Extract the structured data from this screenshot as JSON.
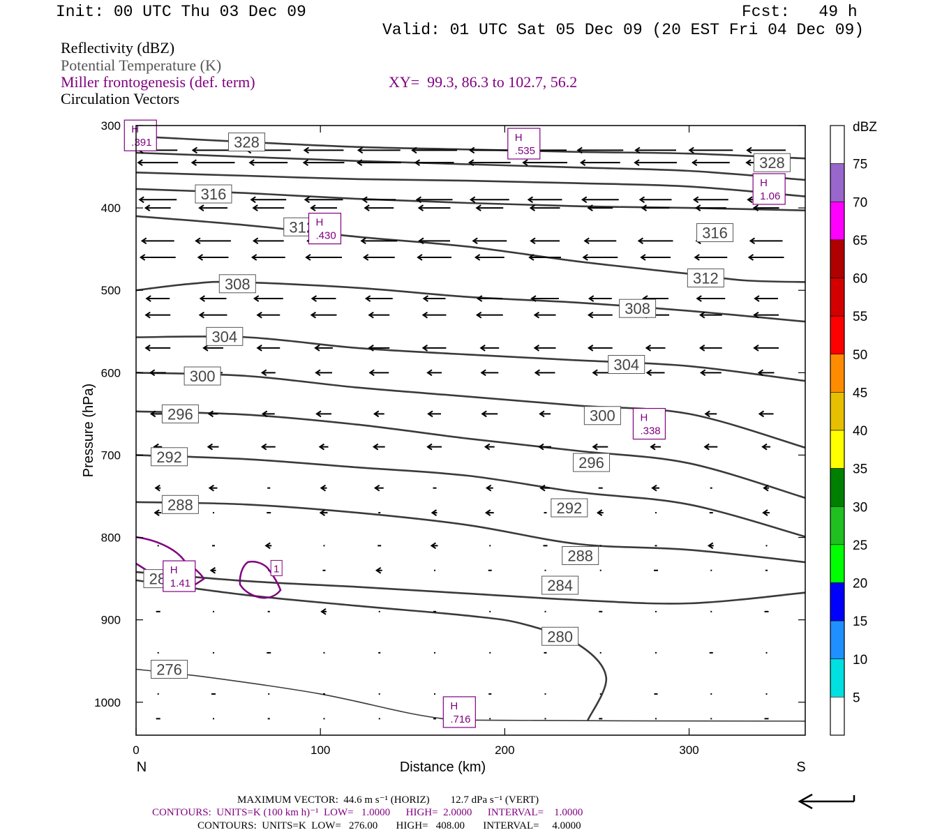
{
  "header": {
    "init": "Init: 00 UTC Thu 03 Dec 09",
    "fcst": "Fcst:   49 h",
    "valid": "Valid: 01 UTC Sat 05 Dec 09 (20 EST Fri 04 Dec 09)"
  },
  "fields": {
    "reflectivity": "Reflectivity (dBZ)",
    "theta": "Potential Temperature (K)",
    "miller": "Miller frontogenesis (def. term)",
    "xy": "XY=  99.3, 86.3 to 102.7, 56.2",
    "vectors": "Circulation Vectors"
  },
  "footer": {
    "max_vector": "MAXIMUM VECTOR:  44.6 m s⁻¹ (HORIZ)        12.7 dPa s⁻¹ (VERT)",
    "contours_fronto": "CONTOURS:  UNITS=K (100 km h)⁻¹  LOW=   1.0000      HIGH=  2.0000      INTERVAL=    1.0000",
    "contours_theta": "CONTOURS:  UNITS=K  LOW=   276.00       HIGH=   408.00       INTERVAL=     4.0000"
  },
  "colors": {
    "theta_line": "#3a3a3a",
    "fronto": "#800080",
    "colorbar": [
      "#ffffff",
      "#00e0e0",
      "#1e90ff",
      "#0000ff",
      "#00ff00",
      "#20c020",
      "#008000",
      "#ffff00",
      "#e6c000",
      "#ff8c00",
      "#ff0000",
      "#d40000",
      "#b00000",
      "#ff00ff",
      "#9966cc",
      "#ffffff"
    ]
  },
  "chart_data": {
    "type": "cross-section",
    "xlabel": "Distance (km)",
    "ylabel": "Pressure (hPa)",
    "xlim": [
      0,
      363
    ],
    "ylim": [
      1040,
      300
    ],
    "xticks": [
      0,
      100,
      200,
      300
    ],
    "yticks": [
      300,
      400,
      500,
      600,
      700,
      800,
      900,
      1000
    ],
    "x_end_labels": {
      "left": "N",
      "right": "S"
    },
    "colorbar": {
      "label": "dBZ",
      "ticks": [
        5,
        10,
        15,
        20,
        25,
        30,
        35,
        40,
        45,
        50,
        55,
        60,
        65,
        70,
        75
      ]
    },
    "theta_contours": [
      {
        "level": 328,
        "label": "328",
        "points": [
          [
            0,
            313
          ],
          [
            60,
            320
          ],
          [
            120,
            326
          ],
          [
            180,
            329
          ],
          [
            240,
            332
          ],
          [
            300,
            334
          ],
          [
            363,
            340
          ]
        ],
        "labels_at": [
          [
            60,
            320
          ],
          [
            345,
            345
          ]
        ]
      },
      {
        "level": 324,
        "label": "",
        "points": [
          [
            0,
            333
          ],
          [
            60,
            338
          ],
          [
            120,
            343
          ],
          [
            180,
            347
          ],
          [
            240,
            351
          ],
          [
            300,
            355
          ],
          [
            363,
            366
          ]
        ],
        "labels_at": []
      },
      {
        "level": 320,
        "label": "",
        "points": [
          [
            0,
            357
          ],
          [
            60,
            361
          ],
          [
            120,
            365
          ],
          [
            180,
            367
          ],
          [
            240,
            370
          ],
          [
            300,
            374
          ],
          [
            363,
            386
          ]
        ],
        "labels_at": []
      },
      {
        "level": 316,
        "label": "316",
        "points": [
          [
            0,
            377
          ],
          [
            60,
            382
          ],
          [
            120,
            389
          ],
          [
            180,
            394
          ],
          [
            240,
            398
          ],
          [
            300,
            400
          ],
          [
            363,
            403
          ]
        ],
        "labels_at": [
          [
            42,
            383
          ],
          [
            314,
            430
          ]
        ]
      },
      {
        "level": 312,
        "label": "312",
        "points": [
          [
            0,
            410
          ],
          [
            60,
            421
          ],
          [
            120,
            435
          ],
          [
            180,
            447
          ],
          [
            240,
            465
          ],
          [
            300,
            480
          ],
          [
            330,
            488
          ],
          [
            363,
            490
          ]
        ],
        "labels_at": [
          [
            90,
            423
          ],
          [
            309,
            485
          ]
        ]
      },
      {
        "level": 308,
        "label": "308",
        "points": [
          [
            0,
            500
          ],
          [
            30,
            492
          ],
          [
            55,
            490
          ],
          [
            120,
            497
          ],
          [
            180,
            508
          ],
          [
            240,
            515
          ],
          [
            300,
            525
          ],
          [
            363,
            538
          ]
        ],
        "labels_at": [
          [
            55,
            492
          ],
          [
            272,
            522
          ]
        ]
      },
      {
        "level": 304,
        "label": "304",
        "points": [
          [
            0,
            557
          ],
          [
            60,
            557
          ],
          [
            120,
            570
          ],
          [
            180,
            578
          ],
          [
            240,
            585
          ],
          [
            300,
            592
          ],
          [
            363,
            610
          ]
        ],
        "labels_at": [
          [
            48,
            556
          ],
          [
            266,
            590
          ]
        ]
      },
      {
        "level": 300,
        "label": "300",
        "points": [
          [
            0,
            600
          ],
          [
            60,
            604
          ],
          [
            120,
            618
          ],
          [
            180,
            629
          ],
          [
            240,
            640
          ],
          [
            300,
            650
          ],
          [
            363,
            691
          ]
        ],
        "labels_at": [
          [
            36,
            604
          ],
          [
            253,
            652
          ]
        ]
      },
      {
        "level": 296,
        "label": "296",
        "points": [
          [
            0,
            647
          ],
          [
            60,
            651
          ],
          [
            120,
            663
          ],
          [
            180,
            680
          ],
          [
            240,
            695
          ],
          [
            300,
            710
          ],
          [
            363,
            752
          ]
        ],
        "labels_at": [
          [
            24,
            650
          ],
          [
            247,
            709
          ]
        ]
      },
      {
        "level": 292,
        "label": "292",
        "points": [
          [
            0,
            700
          ],
          [
            60,
            705
          ],
          [
            120,
            715
          ],
          [
            180,
            725
          ],
          [
            240,
            745
          ],
          [
            300,
            760
          ],
          [
            363,
            799
          ]
        ],
        "labels_at": [
          [
            18,
            702
          ],
          [
            235,
            764
          ]
        ]
      },
      {
        "level": 288,
        "label": "288",
        "points": [
          [
            0,
            757
          ],
          [
            60,
            760
          ],
          [
            120,
            770
          ],
          [
            180,
            785
          ],
          [
            240,
            808
          ],
          [
            300,
            815
          ],
          [
            363,
            830
          ]
        ],
        "labels_at": [
          [
            24,
            760
          ],
          [
            241,
            822
          ]
        ]
      },
      {
        "level": 284,
        "label": "284",
        "points": [
          [
            0,
            842
          ],
          [
            60,
            853
          ],
          [
            120,
            860
          ],
          [
            180,
            868
          ],
          [
            240,
            876
          ],
          [
            300,
            880
          ],
          [
            363,
            867
          ]
        ],
        "labels_at": [
          [
            230,
            858
          ]
        ]
      },
      {
        "level": 280,
        "label": "280",
        "points": [
          [
            0,
            852
          ],
          [
            60,
            870
          ],
          [
            120,
            883
          ],
          [
            180,
            895
          ],
          [
            210,
            905
          ],
          [
            240,
            930
          ],
          [
            255,
            970
          ],
          [
            245,
            1022
          ]
        ],
        "labels_at": [
          [
            14,
            850
          ],
          [
            230,
            920
          ]
        ]
      },
      {
        "level": 276,
        "label": "276",
        "points": [
          [
            0,
            960
          ],
          [
            40,
            970
          ],
          [
            100,
            990
          ],
          [
            160,
            1018
          ],
          [
            200,
            1022
          ],
          [
            363,
            1023
          ]
        ],
        "labels_at": [
          [
            18,
            960
          ]
        ]
      }
    ],
    "frontogenesis_maxima": [
      {
        "marker": "H",
        "value": ".391",
        "x": 2,
        "p": 312
      },
      {
        "marker": "H",
        "value": ".535",
        "x": 210,
        "p": 322
      },
      {
        "marker": "H",
        "value": "1.06",
        "x": 343,
        "p": 377
      },
      {
        "marker": "H",
        "value": ".430",
        "x": 102,
        "p": 425
      },
      {
        "marker": "H",
        "value": ".338",
        "x": 278,
        "p": 662
      },
      {
        "marker": "H",
        "value": "1.41",
        "x": 23,
        "p": 847
      },
      {
        "marker": "H",
        "value": ".716",
        "x": 175,
        "p": 1012
      }
    ],
    "frontogenesis_contour_labels": [
      {
        "value": "1",
        "x": 72,
        "p": 838
      }
    ],
    "max_vector_reference": {
      "horizontal": 44.6,
      "vertical": 12.7
    }
  }
}
